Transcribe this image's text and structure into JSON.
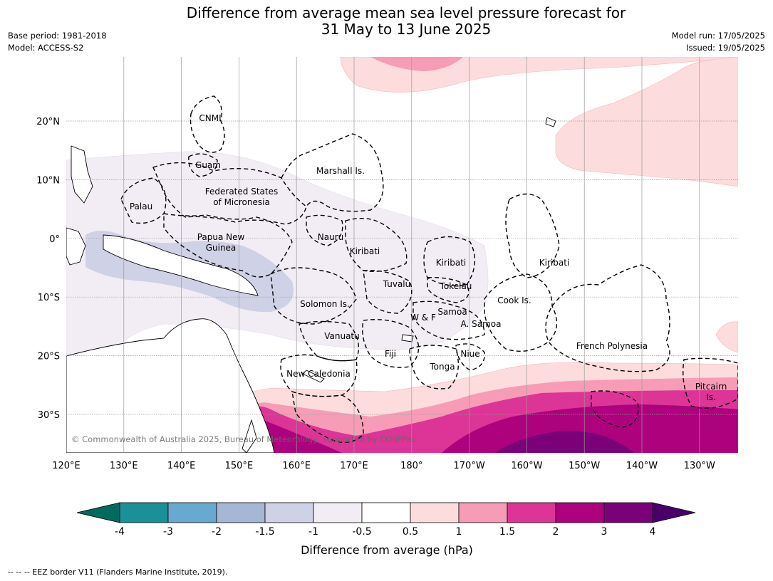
{
  "title": {
    "line1": "Difference from average mean sea level pressure forecast for",
    "line2": "31 May to 13 June 2025"
  },
  "meta": {
    "base_period": "Base period: 1981-2018",
    "model": "Model: ACCESS-S2",
    "model_run": "Model run: 17/05/2025",
    "issued": "Issued: 19/05/2025"
  },
  "map": {
    "longitude_labels": [
      "120°E",
      "130°E",
      "140°E",
      "150°E",
      "160°E",
      "170°E",
      "180°",
      "170°W",
      "160°W",
      "150°W",
      "140°W",
      "130°W"
    ],
    "latitude_labels": [
      "20°N",
      "10°N",
      "0°",
      "10°S",
      "20°S",
      "30°S"
    ],
    "region_labels": [
      {
        "text": "CNMI"
      },
      {
        "text": "Guam"
      },
      {
        "text": "Marshall Is."
      },
      {
        "text": "Federated States"
      },
      {
        "text": "of Micronesia"
      },
      {
        "text": "Palau"
      },
      {
        "text": "Papua New"
      },
      {
        "text": "Guinea"
      },
      {
        "text": "Nauru"
      },
      {
        "text": "Kiribati"
      },
      {
        "text": "Kiribati"
      },
      {
        "text": "Kiribati"
      },
      {
        "text": "Tuvalu"
      },
      {
        "text": "Tokelau"
      },
      {
        "text": "Solomon Is."
      },
      {
        "text": "Cook Is."
      },
      {
        "text": "W & F"
      },
      {
        "text": "Samoa"
      },
      {
        "text": "A. Samoa"
      },
      {
        "text": "Vanuatu"
      },
      {
        "text": "Fiji"
      },
      {
        "text": "Niue"
      },
      {
        "text": "French Polynesia"
      },
      {
        "text": "Tonga"
      },
      {
        "text": "New Caledonia"
      },
      {
        "text": "Pitcairn"
      },
      {
        "text": "Is."
      }
    ],
    "copyright": "© Commonwealth of Australia 2025, Bureau of Meteorology, supported by COSPPac",
    "fill_colors": {
      "neg_1_5": "#cfd1e6",
      "neg_0_5": "#f2edf5",
      "pos_0_5": "#fddcdd",
      "pos_1": "#f79cb7",
      "pos_1_5": "#dd3497",
      "pos_2": "#ae017e",
      "pos_3": "#7a0177",
      "land": "#ffffff"
    }
  },
  "colorbar": {
    "ticks": [
      "-4",
      "-3",
      "-2",
      "-1.5",
      "-1",
      "-0.5",
      "0.5",
      "1",
      "1.5",
      "2",
      "3",
      "4"
    ],
    "colors": [
      "#006b5d",
      "#1a9098",
      "#67a9cf",
      "#a6b7d6",
      "#cfd1e6",
      "#f2edf5",
      "#ffffff",
      "#fddcdd",
      "#f79cb7",
      "#dd3497",
      "#ae017e",
      "#7a0177",
      "#49006a"
    ],
    "label": "Difference from average (hPa)"
  },
  "footer": "--  --  -- EEZ border V11 (Flanders Marine Institute, 2019)."
}
